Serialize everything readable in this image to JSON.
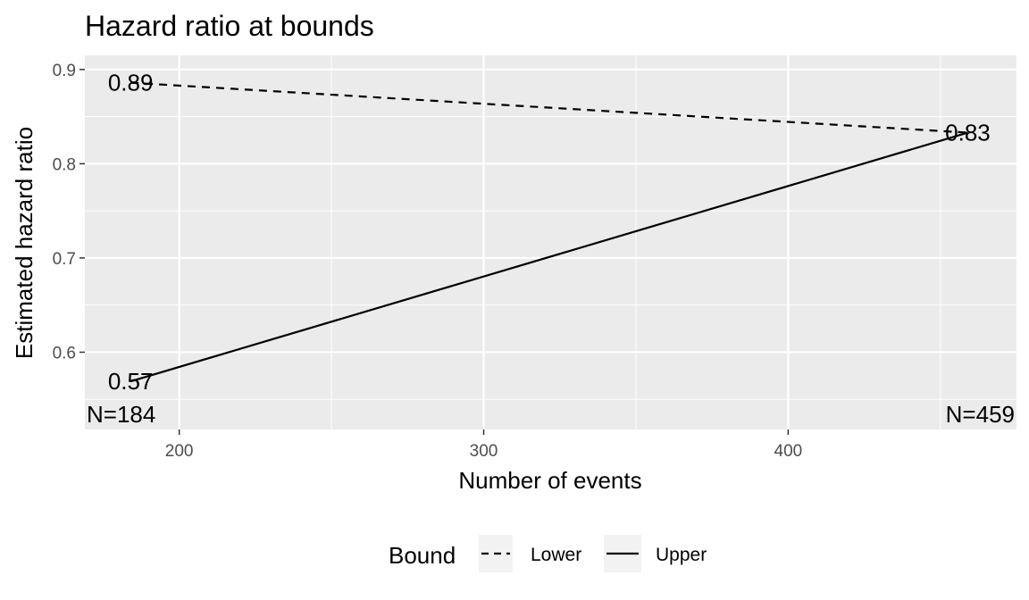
{
  "chart_data": {
    "type": "line",
    "title": "Hazard ratio at bounds",
    "xlabel": "Number of events",
    "ylabel": "Estimated hazard ratio",
    "xlim": [
      169,
      475
    ],
    "ylim": [
      0.518,
      0.915
    ],
    "x_ticks": [
      200,
      300,
      400
    ],
    "y_ticks": [
      0.6,
      0.7,
      0.8,
      0.9
    ],
    "grid": true,
    "legend": {
      "title": "Bound",
      "position": "bottom"
    },
    "series": [
      {
        "name": "Lower",
        "linetype": "dashed",
        "x": [
          184,
          459
        ],
        "y": [
          0.886,
          0.833
        ]
      },
      {
        "name": "Upper",
        "linetype": "solid",
        "x": [
          184,
          459
        ],
        "y": [
          0.569,
          0.833
        ]
      }
    ],
    "point_labels": [
      {
        "text": "0.89",
        "x": 184,
        "y": 0.886
      },
      {
        "text": "0.57",
        "x": 184,
        "y": 0.569
      },
      {
        "text": "0.83",
        "x": 459,
        "y": 0.833
      }
    ],
    "n_labels": [
      {
        "text": "N=184",
        "x": 184
      },
      {
        "text": "N=459",
        "x": 459
      }
    ]
  }
}
